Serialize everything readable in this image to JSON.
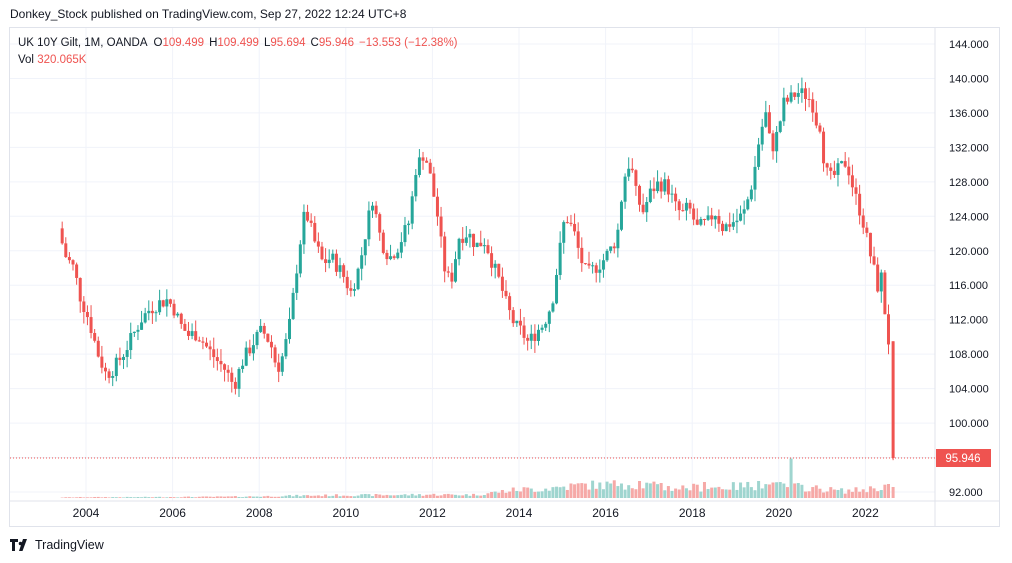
{
  "header": {
    "publisher_line": "Donkey_Stock published on TradingView.com, Sep 27, 2022 12:24 UTC+8"
  },
  "legend": {
    "symbol": "UK 10Y Gilt, 1M, OANDA",
    "open_label": "O",
    "open": "109.499",
    "high_label": "H",
    "high": "109.499",
    "low_label": "L",
    "low": "95.694",
    "close_label": "C",
    "close": "95.946",
    "change": "−13.553 (−12.38%)",
    "vol_label": "Vol",
    "vol": "320.065K"
  },
  "footer": {
    "brand": "TradingView"
  },
  "colors": {
    "up": "#26a69a",
    "down": "#ef5350",
    "up_vol": "#9fd5cf",
    "down_vol": "#f6a9a7",
    "grid": "#f0f3fa"
  },
  "chart_data": {
    "type": "candlestick",
    "title": "UK 10Y Gilt, 1M, OANDA",
    "y_ticks": [
      "92.000",
      "96.000",
      "100.000",
      "104.000",
      "108.000",
      "112.000",
      "116.000",
      "120.000",
      "124.000",
      "128.000",
      "132.000",
      "136.000",
      "140.000",
      "144.000"
    ],
    "x_ticks": [
      "2004",
      "2006",
      "2008",
      "2010",
      "2012",
      "2014",
      "2016",
      "2018",
      "2020",
      "2022"
    ],
    "ylim": [
      92,
      144
    ],
    "xlim": [
      2003.0,
      2023.5
    ],
    "last_price_label": "95.946",
    "last_price": 95.946,
    "path": [
      [
        2003.45,
        122.6
      ],
      [
        2003.6,
        119.5
      ],
      [
        2003.8,
        118
      ],
      [
        2003.95,
        114.7
      ],
      [
        2004.15,
        112
      ],
      [
        2004.35,
        108.2
      ],
      [
        2004.55,
        105.6
      ],
      [
        2004.75,
        106.5
      ],
      [
        2004.95,
        108.1
      ],
      [
        2005.15,
        110
      ],
      [
        2005.35,
        112
      ],
      [
        2005.55,
        113.2
      ],
      [
        2005.75,
        113.9
      ],
      [
        2005.95,
        114.3
      ],
      [
        2006.1,
        113.5
      ],
      [
        2006.25,
        111.5
      ],
      [
        2006.45,
        110.2
      ],
      [
        2006.65,
        110.4
      ],
      [
        2006.9,
        108.6
      ],
      [
        2007.1,
        107.3
      ],
      [
        2007.3,
        106.2
      ],
      [
        2007.5,
        104.3
      ],
      [
        2007.7,
        107.2
      ],
      [
        2007.95,
        109.4
      ],
      [
        2008.15,
        110.8
      ],
      [
        2008.35,
        109.2
      ],
      [
        2008.5,
        106.2
      ],
      [
        2008.65,
        108.1
      ],
      [
        2008.8,
        111.8
      ],
      [
        2009.0,
        120.1
      ],
      [
        2009.15,
        124.8
      ],
      [
        2009.35,
        121.2
      ],
      [
        2009.55,
        118.6
      ],
      [
        2009.75,
        119.2
      ],
      [
        2010.0,
        117.4
      ],
      [
        2010.2,
        115.2
      ],
      [
        2010.4,
        118.2
      ],
      [
        2010.55,
        122.4
      ],
      [
        2010.7,
        126.1
      ],
      [
        2010.9,
        121.1
      ],
      [
        2011.1,
        119.2
      ],
      [
        2011.3,
        120.6
      ],
      [
        2011.55,
        123.4
      ],
      [
        2011.7,
        129.5
      ],
      [
        2011.9,
        131.5
      ],
      [
        2012.05,
        128.2
      ],
      [
        2012.2,
        124.1
      ],
      [
        2012.35,
        118.2
      ],
      [
        2012.5,
        116.1
      ],
      [
        2012.7,
        121.6
      ],
      [
        2012.9,
        122.1
      ],
      [
        2013.1,
        120.6
      ],
      [
        2013.3,
        121.2
      ],
      [
        2013.5,
        118.1
      ],
      [
        2013.65,
        116.2
      ],
      [
        2013.8,
        113.6
      ],
      [
        2014.0,
        111.2
      ],
      [
        2014.15,
        110.6
      ],
      [
        2014.3,
        109.3
      ],
      [
        2014.5,
        110.7
      ],
      [
        2014.65,
        111.5
      ],
      [
        2014.85,
        114.1
      ],
      [
        2015.0,
        119.2
      ],
      [
        2015.15,
        124.2
      ],
      [
        2015.35,
        122.2
      ],
      [
        2015.5,
        119.2
      ],
      [
        2015.65,
        117.2
      ],
      [
        2015.85,
        118.1
      ],
      [
        2016.0,
        118.7
      ],
      [
        2016.2,
        120.2
      ],
      [
        2016.35,
        121.6
      ],
      [
        2016.5,
        128.3
      ],
      [
        2016.65,
        130.5
      ],
      [
        2016.8,
        126.2
      ],
      [
        2016.95,
        124.6
      ],
      [
        2017.15,
        127.1
      ],
      [
        2017.3,
        127.8
      ],
      [
        2017.5,
        127.6
      ],
      [
        2017.7,
        125.1
      ],
      [
        2017.85,
        124.2
      ],
      [
        2018.0,
        125.1
      ],
      [
        2018.2,
        122.6
      ],
      [
        2018.45,
        123.3
      ],
      [
        2018.6,
        124.6
      ],
      [
        2018.8,
        122.6
      ],
      [
        2018.95,
        123.2
      ],
      [
        2019.15,
        123.6
      ],
      [
        2019.3,
        124.6
      ],
      [
        2019.5,
        128.6
      ],
      [
        2019.65,
        133.6
      ],
      [
        2019.8,
        136.1
      ],
      [
        2019.9,
        131.5
      ],
      [
        2020.05,
        133.6
      ],
      [
        2020.2,
        137.1
      ],
      [
        2020.35,
        137.6
      ],
      [
        2020.5,
        138.4
      ],
      [
        2020.7,
        138.1
      ],
      [
        2020.85,
        137.3
      ],
      [
        2020.95,
        135.1
      ],
      [
        2021.05,
        134.5
      ],
      [
        2021.15,
        129.3
      ],
      [
        2021.3,
        128.3
      ],
      [
        2021.5,
        129.6
      ],
      [
        2021.65,
        130.4
      ],
      [
        2021.75,
        128.3
      ],
      [
        2021.85,
        126.3
      ],
      [
        2022.0,
        124.1
      ],
      [
        2022.15,
        120.6
      ],
      [
        2022.3,
        117.3
      ],
      [
        2022.4,
        115.2
      ],
      [
        2022.5,
        118.6
      ],
      [
        2022.55,
        110.2
      ],
      [
        2022.62,
        109.5
      ]
    ],
    "last_candle": {
      "open": 109.499,
      "high": 109.499,
      "low": 95.694,
      "close": 95.946
    },
    "volume_profile": [
      [
        2003.4,
        0.5
      ],
      [
        2004.0,
        0.8
      ],
      [
        2005.0,
        0.8
      ],
      [
        2006.0,
        1.0
      ],
      [
        2007.0,
        1.2
      ],
      [
        2008.0,
        1.6
      ],
      [
        2009.0,
        2.4
      ],
      [
        2010.0,
        2.8
      ],
      [
        2011.0,
        3.0
      ],
      [
        2012.0,
        3.4
      ],
      [
        2013.0,
        3.2
      ],
      [
        2013.6,
        6.5
      ],
      [
        2014.0,
        8.5
      ],
      [
        2014.5,
        9.0
      ],
      [
        2015.0,
        11.0
      ],
      [
        2015.5,
        13.0
      ],
      [
        2016.0,
        13.0
      ],
      [
        2016.5,
        14.0
      ],
      [
        2017.0,
        12.5
      ],
      [
        2017.5,
        10.0
      ],
      [
        2018.0,
        10.5
      ],
      [
        2018.5,
        10.5
      ],
      [
        2019.0,
        11.5
      ],
      [
        2019.5,
        13.0
      ],
      [
        2020.0,
        12.0
      ],
      [
        2020.5,
        11.0
      ],
      [
        2021.0,
        9.0
      ],
      [
        2021.5,
        7.0
      ],
      [
        2022.0,
        8.5
      ],
      [
        2022.5,
        12.0
      ],
      [
        2022.7,
        11.0
      ]
    ],
    "volume_spikes": [
      [
        2015.85,
        15.5
      ],
      [
        2016.4,
        14.5
      ],
      [
        2016.75,
        17.0
      ],
      [
        2017.25,
        15.0
      ],
      [
        2018.3,
        16.0
      ],
      [
        2019.5,
        17.0
      ],
      [
        2019.85,
        15.5
      ],
      [
        2020.25,
        39.5
      ],
      [
        2022.55,
        14.0
      ]
    ]
  }
}
